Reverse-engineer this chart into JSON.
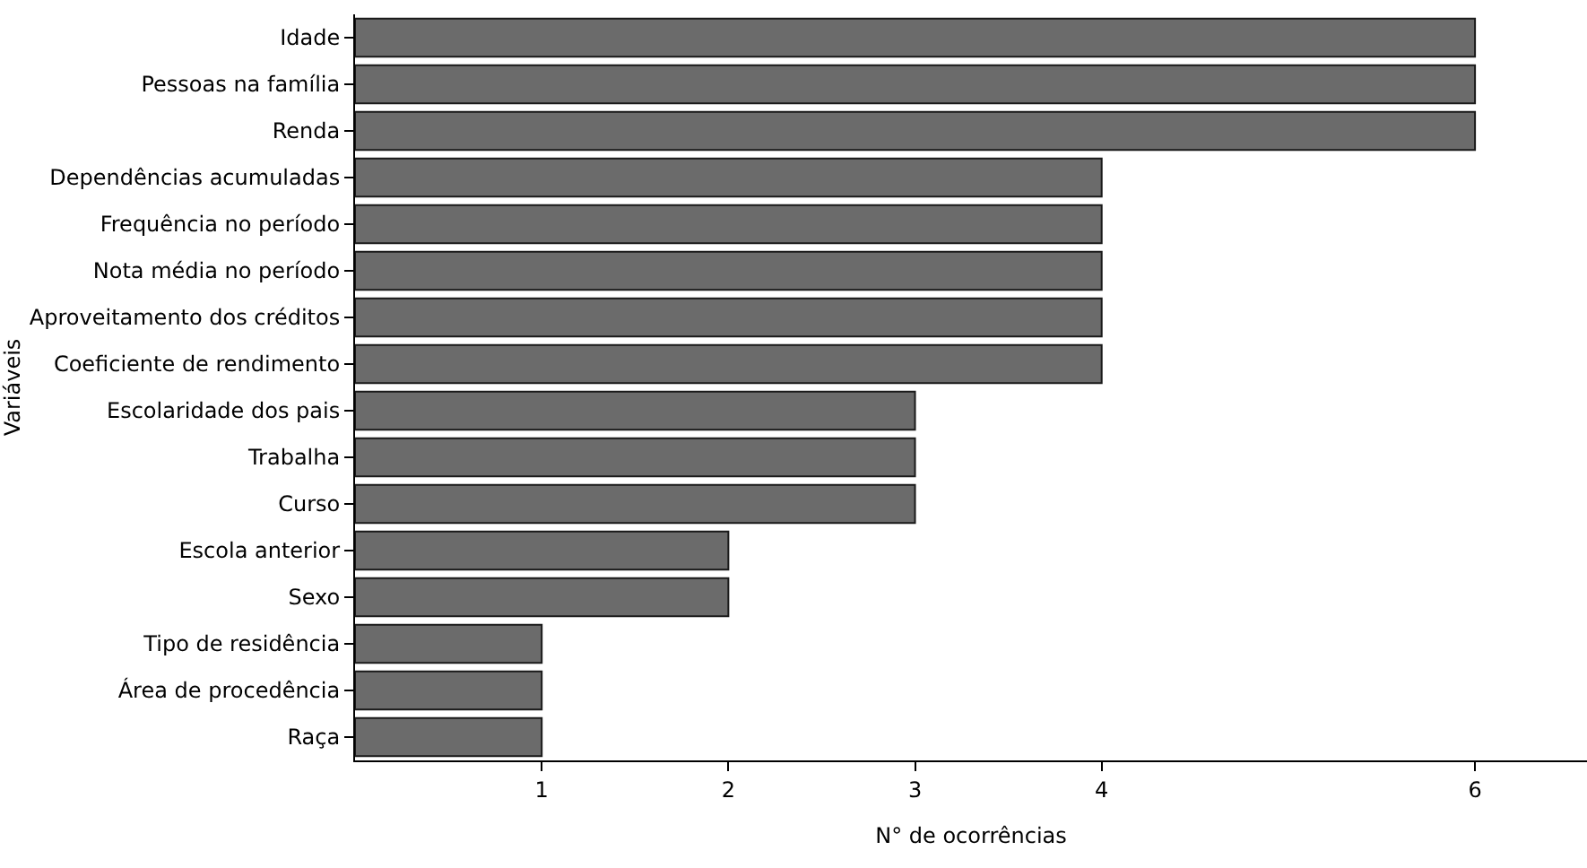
{
  "chart_data": {
    "type": "bar",
    "orientation": "horizontal",
    "xlabel": "N° de ocorrências",
    "ylabel": "Variáveis",
    "categories": [
      "Idade",
      "Pessoas na família",
      "Renda",
      "Dependências acumuladas",
      "Frequência no período",
      "Nota média no período",
      "Aproveitamento dos créditos",
      "Coeficiente de rendimento",
      "Escolaridade dos pais",
      "Trabalha",
      "Curso",
      "Escola anterior",
      "Sexo",
      "Tipo de residência",
      "Área de procedência",
      "Raça"
    ],
    "values": [
      6,
      6,
      6,
      4,
      4,
      4,
      4,
      4,
      3,
      3,
      3,
      2,
      2,
      1,
      1,
      1
    ],
    "color": "#6b6b6b",
    "xlim": [
      0,
      6.6
    ],
    "xticks": [
      1,
      2,
      3,
      4,
      6
    ],
    "grid": false,
    "legend": false
  }
}
